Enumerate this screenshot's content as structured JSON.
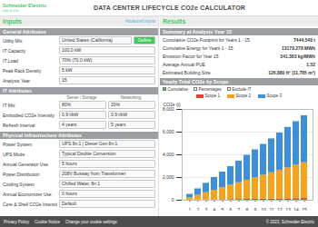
{
  "header": {
    "logo": "Schneider Electric",
    "tagline": "Life Is On",
    "title": "DATA CENTER LIFECYCLE CO2e CALCULATOR"
  },
  "inputs": {
    "title": "Inputs",
    "link": "Advanced inputs",
    "sections": [
      {
        "title": "General Attributes",
        "rows": [
          {
            "label": "Utility Mix",
            "values": [
              "United States (California)",
              "Define"
            ]
          },
          {
            "label": "IT Capacity",
            "values": [
              "100.0 kW"
            ]
          },
          {
            "label": "IT Load",
            "values": [
              "70% (70.0 kW)"
            ]
          },
          {
            "label": "Peak Rack Density",
            "values": [
              "5 kW"
            ]
          },
          {
            "label": "Analysis Year",
            "values": [
              "15"
            ]
          }
        ]
      },
      {
        "title": "IT Attributes",
        "column_headers": [
          "Server / Storage",
          "Networking"
        ],
        "rows": [
          {
            "label": "IT Mix",
            "values": [
              "80%",
              "20%"
            ]
          },
          {
            "label": "Embodied CO2e Intensity",
            "values": [
              "0.9 t/kW",
              "0.9 t/kW"
            ]
          },
          {
            "label": "Refresh Interval",
            "values": [
              "4 years",
              "5 years"
            ]
          }
        ]
      },
      {
        "title": "Physical Infrastructure Attributes",
        "rows": [
          {
            "label": "Power System",
            "values": [
              "UPS 8n:1 | Diesel Gen 8n:1"
            ]
          },
          {
            "label": "UPS Mode",
            "values": [
              "Typical Double Conversion"
            ]
          },
          {
            "label": "Annual Generator Use",
            "values": [
              "5 hours"
            ]
          },
          {
            "label": "Power Distribution",
            "values": [
              "208V Busway from Transformer"
            ]
          },
          {
            "label": "Cooling System",
            "values": [
              "Chilled Water, 8n:1"
            ]
          },
          {
            "label": "Annual Economizer Use",
            "values": [
              "0 hours"
            ]
          },
          {
            "label": "Core & Shell CO2e Intensity",
            "values": [
              "Default"
            ]
          }
        ]
      }
    ]
  },
  "results": {
    "title": "Results",
    "summary": {
      "title": "Summary at Analysis Year 15",
      "rows": [
        {
          "label": "Cumulative CO2e Footprint for Years 1 - 15",
          "value": "7444.540 t"
        },
        {
          "label": "Cumulative Energy for Years 1 - 15",
          "value": "13170.278 MWh"
        },
        {
          "label": "Emission Factor for Year 15",
          "value": "341.383 kg/MWh"
        },
        {
          "label": "Average Annual PUE",
          "value": "1.52"
        },
        {
          "label": "Estimated Building Size",
          "value": "126,880 ft² (11,785 m²)"
        }
      ]
    },
    "chart_tabs": [
      {
        "label": "Cumulative",
        "checked": true
      },
      {
        "label": "Percentages",
        "checked": false
      },
      {
        "label": "Exclude IT",
        "checked": false
      }
    ]
  },
  "chart_data": {
    "type": "bar",
    "title": "Yearly Total CO2e by Scope",
    "stacked": true,
    "grid": true,
    "legend": "top",
    "y_label": "CO2e (t)",
    "categories": [
      "1",
      "2",
      "3",
      "4",
      "5",
      "6",
      "7",
      "8",
      "9",
      "10",
      "11",
      "12",
      "13",
      "14",
      "15"
    ],
    "series": [
      {
        "name": "Scope 1",
        "color": "#e8412c",
        "values": [
          10,
          20,
          30,
          40,
          50,
          60,
          70,
          80,
          90,
          100,
          110,
          120,
          130,
          140,
          150
        ]
      },
      {
        "name": "Scope 2",
        "color": "#f7a21b",
        "values": [
          210,
          420,
          630,
          840,
          1050,
          1260,
          1470,
          1680,
          1890,
          2100,
          2310,
          2520,
          2730,
          2940,
          3150
        ]
      },
      {
        "name": "Scope 3",
        "color": "#3e8fd9",
        "values": [
          300,
          560,
          830,
          1120,
          1380,
          1640,
          1910,
          2200,
          2460,
          2720,
          2990,
          3280,
          3560,
          3840,
          4144
        ]
      }
    ],
    "ylim": [
      0,
      8000
    ],
    "yticks": [
      0,
      2000,
      4000,
      6000,
      8000
    ]
  },
  "footer": {
    "links": [
      "Privacy Policy",
      "Cookie Notice",
      "Change your cookie settings"
    ],
    "copyright": "© 2023, Schneider Electric"
  }
}
